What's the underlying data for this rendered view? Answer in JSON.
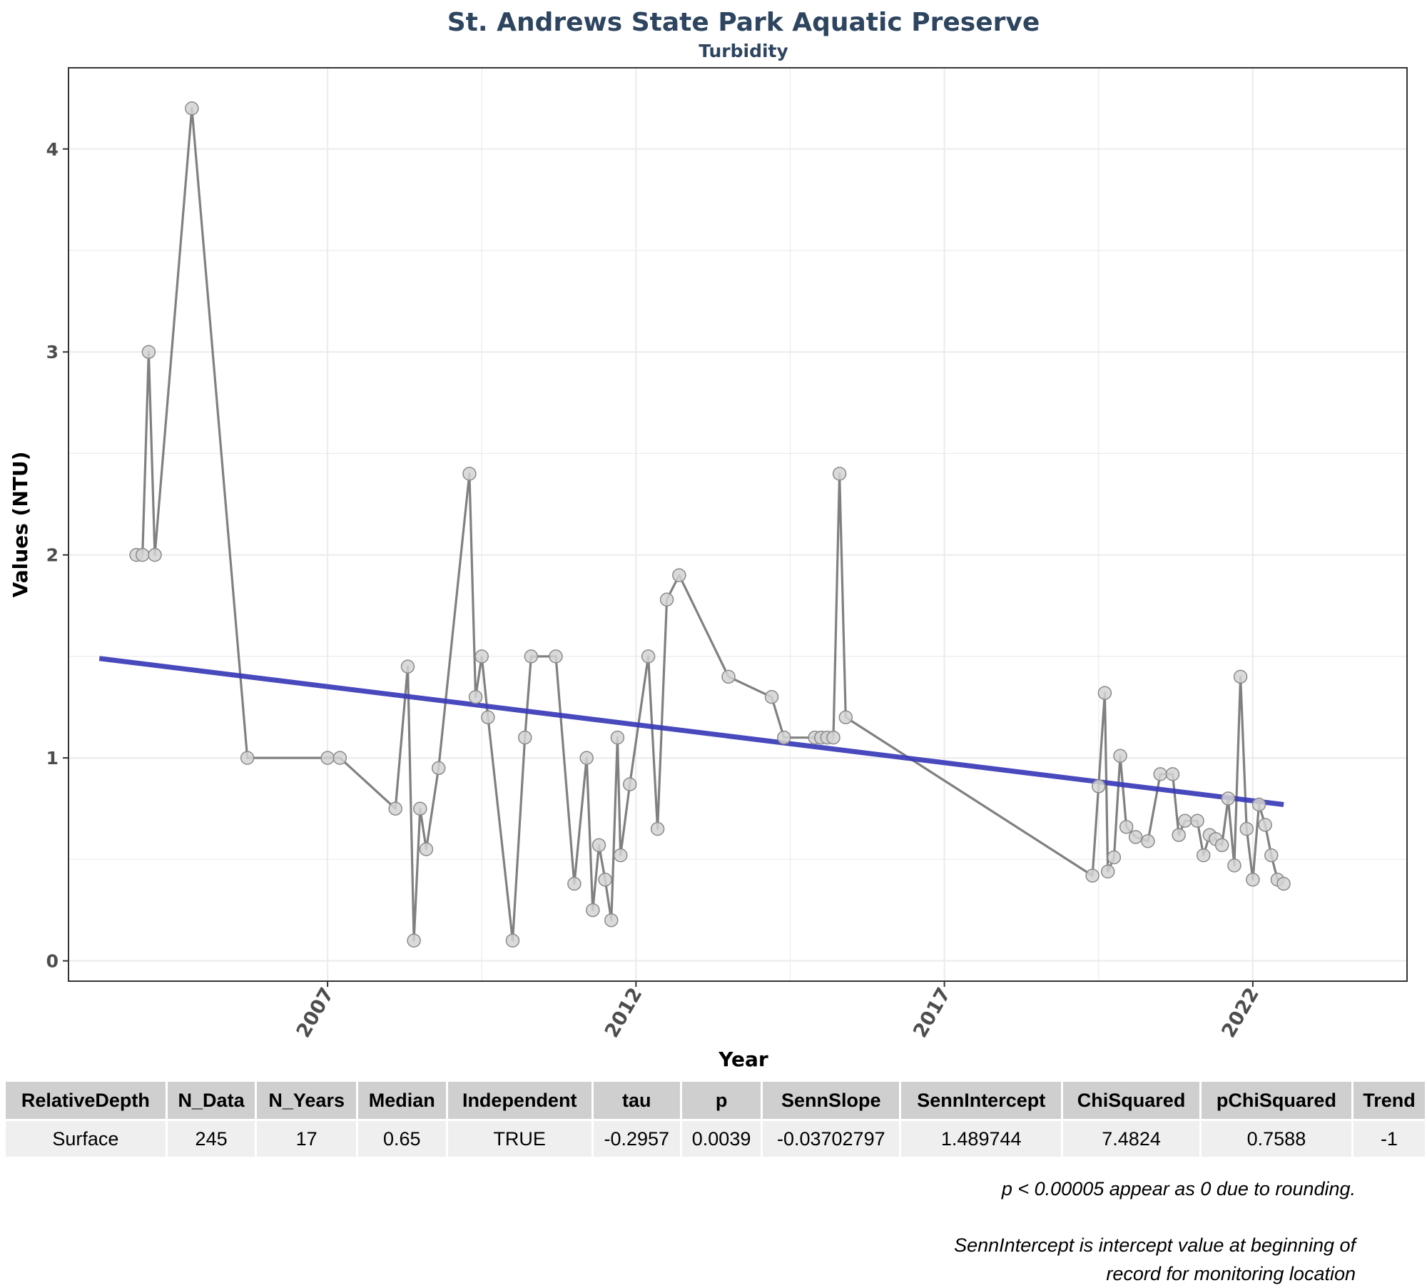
{
  "chart_data": {
    "type": "line",
    "title": "St. Andrews State Park Aquatic Preserve",
    "subtitle": "Turbidity",
    "xlabel": "Year",
    "ylabel": "Values (NTU)",
    "x_ticks": [
      "2007",
      "2012",
      "2017",
      "2022"
    ],
    "y_ticks": [
      "0",
      "1",
      "2",
      "3",
      "4"
    ],
    "xlim": [
      2002.8,
      2024.5
    ],
    "ylim": [
      -0.1,
      4.4
    ],
    "grid": true,
    "series": [
      {
        "name": "",
        "x": [
          2003.9,
          2004.0,
          2004.1,
          2004.2,
          2004.8,
          2005.7,
          2007.0,
          2007.2,
          2008.1,
          2008.3,
          2008.4,
          2008.5,
          2008.6,
          2008.8,
          2009.3,
          2009.4,
          2009.5,
          2009.6,
          2010.0,
          2010.2,
          2010.3,
          2010.7,
          2011.0,
          2011.2,
          2011.3,
          2011.4,
          2011.5,
          2011.6,
          2011.7,
          2011.75,
          2011.9,
          2012.2,
          2012.35,
          2012.5,
          2012.7,
          2013.5,
          2014.2,
          2014.4,
          2014.9,
          2015.0,
          2015.1,
          2015.2,
          2015.3,
          2015.4,
          2019.4,
          2019.5,
          2019.6,
          2019.65,
          2019.75,
          2019.85,
          2019.95,
          2020.1,
          2020.3,
          2020.5,
          2020.7,
          2020.8,
          2020.9,
          2021.1,
          2021.2,
          2021.3,
          2021.4,
          2021.5,
          2021.6,
          2021.7,
          2021.8,
          2021.9,
          2022.0,
          2022.1,
          2022.2,
          2022.3,
          2022.4,
          2022.5
        ],
        "values": [
          2.0,
          2.0,
          3.0,
          2.0,
          4.2,
          1.0,
          1.0,
          1.0,
          0.75,
          1.45,
          0.1,
          0.75,
          0.55,
          0.95,
          2.4,
          1.3,
          1.5,
          1.2,
          0.1,
          1.1,
          1.5,
          1.5,
          0.38,
          1.0,
          0.25,
          0.57,
          0.4,
          0.2,
          1.1,
          0.52,
          0.87,
          1.5,
          0.65,
          1.78,
          1.9,
          1.4,
          1.3,
          1.1,
          1.1,
          1.1,
          1.1,
          1.1,
          2.4,
          1.2,
          0.42,
          0.86,
          1.32,
          0.44,
          0.51,
          1.01,
          0.66,
          0.61,
          0.59,
          0.92,
          0.92,
          0.62,
          0.69,
          0.69,
          0.52,
          0.62,
          0.6,
          0.57,
          0.8,
          0.47,
          1.4,
          0.65,
          0.4,
          0.77,
          0.67,
          0.52,
          0.4,
          0.38
        ]
      },
      {
        "name": "",
        "type": "trend",
        "x": [
          2003.3,
          2022.5
        ],
        "values": [
          1.49,
          0.77
        ],
        "color": "#3a3ab8"
      }
    ]
  },
  "table": {
    "headers": [
      "RelativeDepth",
      "N_Data",
      "N_Years",
      "Median",
      "Independent",
      "tau",
      "p",
      "SennSlope",
      "SennIntercept",
      "ChiSquared",
      "pChiSquared",
      "Trend"
    ],
    "row": [
      "Surface",
      "245",
      "17",
      "0.65",
      "TRUE",
      "-0.2957",
      "0.0039",
      "-0.03702797",
      "1.489744",
      "7.4824",
      "0.7588",
      "-1"
    ]
  },
  "notes": {
    "rounding": "p < 0.00005 appear as 0 due to rounding.",
    "intercept_line1": "SennIntercept is intercept value at beginning of",
    "intercept_line2": "record for monitoring location"
  },
  "colors": {
    "title": "#2e4560",
    "data_line": "#808080",
    "point_fill": "#d3d3d3",
    "point_stroke": "#8a8a8a",
    "trend": "#3a3ab8",
    "grid": "#ebebeb"
  }
}
